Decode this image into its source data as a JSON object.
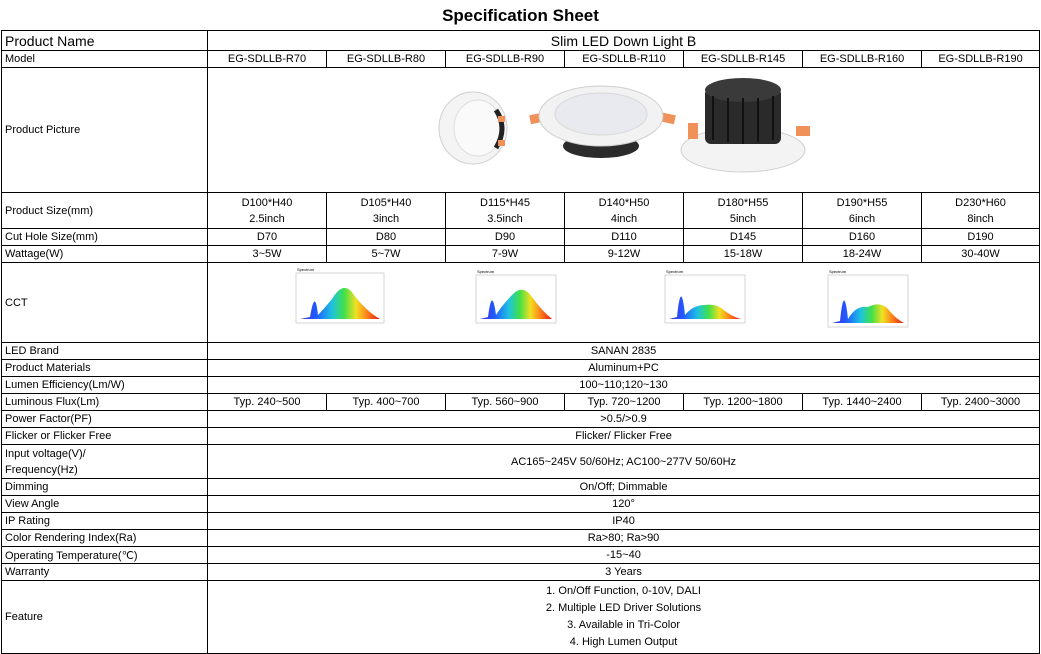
{
  "title": "Specification Sheet",
  "product_name": {
    "label": "Product Name",
    "value": "Slim LED Down Light B"
  },
  "model": {
    "label": "Model",
    "values": [
      "EG-SDLLB-R70",
      "EG-SDLLB-R80",
      "EG-SDLLB-R90",
      "EG-SDLLB-R110",
      "EG-SDLLB-R145",
      "EG-SDLLB-R160",
      "EG-SDLLB-R190"
    ]
  },
  "product_picture": {
    "label": "Product Picture"
  },
  "product_size": {
    "label": "Product Size(mm)",
    "values": [
      {
        "dim": "D100*H40",
        "inch": "2.5inch"
      },
      {
        "dim": "D105*H40",
        "inch": "3inch"
      },
      {
        "dim": "D115*H45",
        "inch": "3.5inch"
      },
      {
        "dim": "D140*H50",
        "inch": "4inch"
      },
      {
        "dim": "D180*H55",
        "inch": "5inch"
      },
      {
        "dim": "D190*H55",
        "inch": "6inch"
      },
      {
        "dim": "D230*H60",
        "inch": "8inch"
      }
    ]
  },
  "cut_hole": {
    "label": "Cut Hole Size(mm)",
    "values": [
      "D70",
      "D80",
      "D90",
      "D110",
      "D145",
      "D160",
      "D190"
    ]
  },
  "wattage": {
    "label": "Wattage(W)",
    "values": [
      "3~5W",
      "5~7W",
      "7-9W",
      "9-12W",
      "15-18W",
      "18-24W",
      "30-40W"
    ]
  },
  "cct": {
    "label": "CCT",
    "spectrum_title": "Spectrum"
  },
  "led_brand": {
    "label": "LED Brand",
    "value": "SANAN 2835"
  },
  "materials": {
    "label": "Product Materials",
    "value": "Aluminum+PC"
  },
  "lumen_eff": {
    "label": "Lumen Efficiency(Lm/W)",
    "value": "100~110;120~130"
  },
  "luminous_flux": {
    "label": "Luminous Flux(Lm)",
    "values": [
      "Typ. 240~500",
      "Typ. 400~700",
      "Typ. 560~900",
      "Typ. 720~1200",
      "Typ. 1200~1800",
      "Typ. 1440~2400",
      "Typ. 2400~3000"
    ]
  },
  "power_factor": {
    "label": "Power Factor(PF)",
    "value": ">0.5/>0.9"
  },
  "flicker": {
    "label": "Flicker or Flicker Free",
    "value": "Flicker/ Flicker Free"
  },
  "input_voltage": {
    "label_1": "Input voltage(V)/",
    "label_2": "Frequency(Hz)",
    "value": "AC165~245V 50/60Hz; AC100~277V 50/60Hz"
  },
  "dimming": {
    "label": "Dimming",
    "value": "On/Off; Dimmable"
  },
  "view_angle": {
    "label": "View Angle",
    "value": "120°"
  },
  "ip_rating": {
    "label": "IP Rating",
    "value": "IP40"
  },
  "cri": {
    "label": "Color Rendering Index(Ra)",
    "value": "Ra>80; Ra>90"
  },
  "op_temp": {
    "label": "Operating Temperature(℃)",
    "value": "-15~40"
  },
  "warranty": {
    "label": "Warranty",
    "value": "3 Years"
  },
  "feature": {
    "label": "Feature",
    "items": [
      "1. On/Off Function, 0-10V, DALI",
      "2. Multiple LED Driver Solutions",
      "3. Available in Tri-Color",
      "4. High Lumen Output"
    ]
  }
}
